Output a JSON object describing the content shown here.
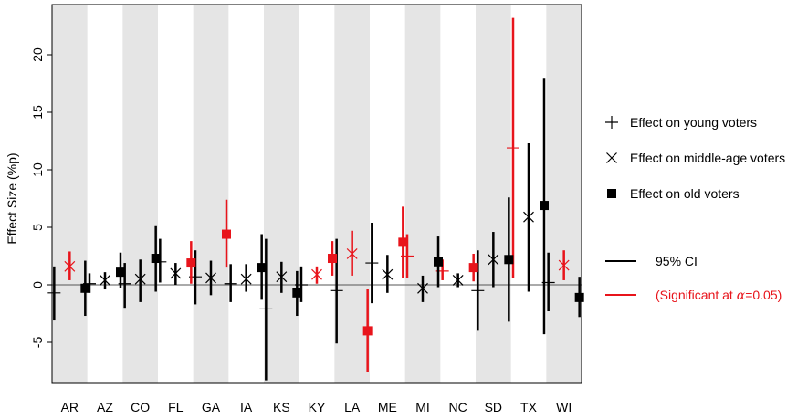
{
  "chart_data": {
    "type": "scatter",
    "ylabel": "Effect Size (%p)",
    "xlabel": "",
    "ylim": [
      -10,
      24
    ],
    "yticks": [
      -5,
      0,
      5,
      10,
      15,
      20
    ],
    "ytick_labels": [
      "-5",
      "0",
      "5",
      "10",
      "15",
      "20"
    ],
    "categories": [
      "AR",
      "AZ",
      "CO",
      "FL",
      "GA",
      "IA",
      "KS",
      "KY",
      "LA",
      "ME",
      "MI",
      "NC",
      "SD",
      "TX",
      "WI"
    ],
    "shaded_categories": [
      "AR",
      "CO",
      "GA",
      "KS",
      "LA",
      "MI",
      "SD",
      "WI"
    ],
    "colors": {
      "not_significant": "#000000",
      "significant": "#e8141b",
      "shade": "#e5e5e5",
      "zero_line": "#555555"
    },
    "series": [
      {
        "name": "Effect on young voters",
        "marker": "plus",
        "values": [
          -0.7,
          0.1,
          0.1,
          2.0,
          0.7,
          0.1,
          -2.1,
          0.0,
          -0.5,
          1.9,
          2.5,
          1.2,
          -0.5,
          11.9,
          0.2
        ],
        "ci_low": [
          -3.1,
          -0.7,
          -2.0,
          0.2,
          -1.7,
          -1.5,
          -8.3,
          -1.5,
          -5.1,
          -1.6,
          0.6,
          0.4,
          -4.0,
          0.6,
          -2.3
        ],
        "ci_high": [
          1.6,
          1.0,
          1.9,
          4.0,
          3.0,
          1.8,
          4.0,
          1.6,
          4.0,
          5.4,
          4.4,
          2.2,
          3.0,
          23.2,
          2.8
        ],
        "significant": [
          false,
          false,
          false,
          false,
          false,
          false,
          false,
          false,
          false,
          false,
          true,
          true,
          false,
          true,
          false
        ]
      },
      {
        "name": "Effect on middle-age voters",
        "marker": "x",
        "values": [
          1.6,
          0.4,
          0.5,
          1.0,
          0.6,
          0.5,
          0.7,
          0.9,
          2.7,
          0.9,
          -0.3,
          0.4,
          2.2,
          5.9,
          1.7
        ],
        "ci_low": [
          0.4,
          -0.4,
          -1.5,
          0.0,
          -0.9,
          -0.6,
          -0.7,
          0.1,
          0.8,
          -0.7,
          -1.5,
          -0.2,
          -0.2,
          -0.6,
          0.4
        ],
        "ci_high": [
          2.9,
          1.1,
          2.2,
          1.9,
          2.1,
          1.8,
          2.0,
          1.6,
          4.7,
          2.6,
          0.8,
          1.0,
          4.6,
          12.3,
          3.0
        ],
        "significant": [
          true,
          false,
          false,
          false,
          false,
          false,
          false,
          true,
          true,
          false,
          false,
          false,
          false,
          false,
          true
        ]
      },
      {
        "name": "Effect on old voters",
        "marker": "square",
        "values": [
          -0.3,
          1.1,
          2.3,
          1.9,
          4.4,
          1.5,
          -0.7,
          2.3,
          -4.0,
          3.7,
          2.0,
          1.5,
          2.2,
          6.9,
          -1.1
        ],
        "ci_low": [
          -2.7,
          -0.3,
          -0.6,
          0.1,
          1.5,
          -1.3,
          -2.7,
          0.8,
          -7.6,
          0.6,
          -0.2,
          0.3,
          -3.2,
          -4.3,
          -2.8
        ],
        "ci_high": [
          2.1,
          2.8,
          5.1,
          3.8,
          7.4,
          4.4,
          1.2,
          3.8,
          -0.4,
          6.8,
          4.2,
          2.7,
          7.6,
          18.0,
          0.7
        ],
        "significant": [
          false,
          false,
          false,
          true,
          true,
          false,
          false,
          true,
          true,
          true,
          false,
          true,
          false,
          false,
          false
        ]
      }
    ],
    "legend": {
      "position": "right",
      "markers": [
        {
          "marker": "plus",
          "label": "Effect on young voters"
        },
        {
          "marker": "x",
          "label": "Effect on middle-age voters"
        },
        {
          "marker": "square",
          "label": "Effect on old voters"
        }
      ],
      "lines": [
        {
          "color": "#000000",
          "label": "95% CI",
          "label_prefix": "",
          "label_symbol": "",
          "label_suffix": ""
        },
        {
          "color": "#e8141b",
          "label": "(Significant at α=0.05)",
          "label_prefix": "(Significant at ",
          "label_symbol": "α",
          "label_suffix": "=0.05)"
        }
      ]
    }
  }
}
